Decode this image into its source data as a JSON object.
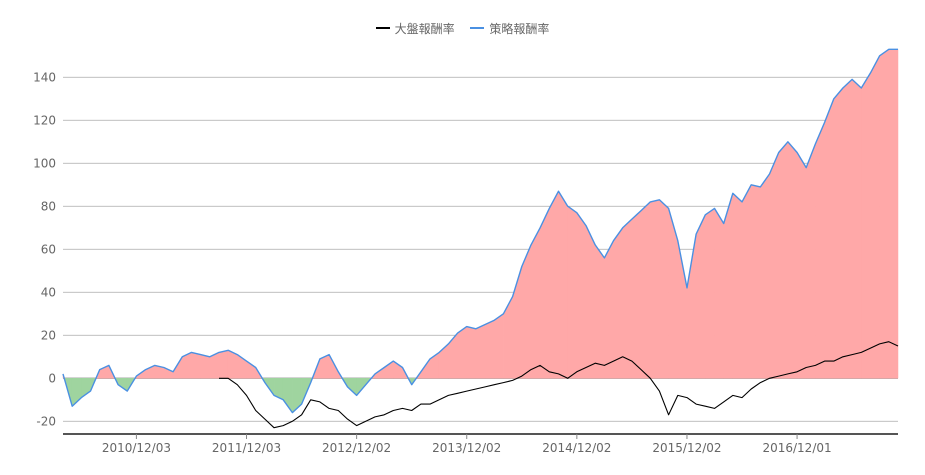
{
  "chart_data": {
    "type": "area",
    "title": "",
    "xlabel": "",
    "ylabel": "",
    "legend": [
      {
        "name": "大盤報酬率",
        "color": "#000000"
      },
      {
        "name": "策略報酬率",
        "color": "#4a90e2"
      }
    ],
    "legend_position": "top-center",
    "grid": true,
    "ylim": [
      -25,
      155
    ],
    "yticks": [
      -20,
      0,
      20,
      40,
      60,
      80,
      100,
      120,
      140
    ],
    "xtick_labels": [
      "2010/12/03",
      "2011/12/03",
      "2012/12/02",
      "2013/12/02",
      "2014/12/02",
      "2015/12/02",
      "2016/12/01"
    ],
    "x_index_range": [
      0,
      91
    ],
    "xtick_positions": [
      8,
      20,
      32,
      44,
      56,
      68,
      80
    ],
    "fill_colors": {
      "above": "#ffa8a8",
      "below": "#9fd49f"
    },
    "series": [
      {
        "name": "策略報酬率",
        "values": [
          2,
          -13,
          -9,
          -6,
          4,
          6,
          -3,
          -6,
          1,
          4,
          6,
          5,
          3,
          10,
          12,
          11,
          10,
          12,
          13,
          11,
          8,
          5,
          -2,
          -8,
          -10,
          -16,
          -12,
          -2,
          9,
          11,
          3,
          -4,
          -8,
          -3,
          2,
          5,
          8,
          5,
          -3,
          3,
          9,
          12,
          16,
          21,
          24,
          23,
          25,
          27,
          30,
          38,
          52,
          62,
          70,
          79,
          87,
          80,
          77,
          71,
          62,
          56,
          64,
          70,
          74,
          78,
          82,
          83,
          79,
          64,
          42,
          67,
          76,
          79,
          72,
          86,
          82,
          90,
          89,
          95,
          105,
          110,
          105,
          98,
          109,
          119,
          130,
          135,
          139,
          135,
          142,
          150,
          153,
          153
        ]
      },
      {
        "name": "大盤報酬率",
        "values": [
          null,
          null,
          null,
          null,
          null,
          null,
          null,
          null,
          null,
          null,
          null,
          null,
          null,
          null,
          null,
          null,
          null,
          0,
          0,
          -3,
          -8,
          -15,
          -19,
          -23,
          -22,
          -20,
          -17,
          -10,
          -11,
          -14,
          -15,
          -19,
          -22,
          -20,
          -18,
          -17,
          -15,
          -14,
          -15,
          -12,
          -12,
          -10,
          -8,
          -7,
          -6,
          -5,
          -4,
          -3,
          -2,
          -1,
          1,
          4,
          6,
          3,
          2,
          0,
          3,
          5,
          7,
          6,
          8,
          10,
          8,
          4,
          0,
          -6,
          -17,
          -8,
          -9,
          -12,
          -13,
          -14,
          -11,
          -8,
          -9,
          -5,
          -2,
          0,
          1,
          2,
          3,
          5,
          6,
          8,
          8,
          10,
          11,
          12,
          14,
          16,
          17,
          15
        ]
      }
    ]
  }
}
